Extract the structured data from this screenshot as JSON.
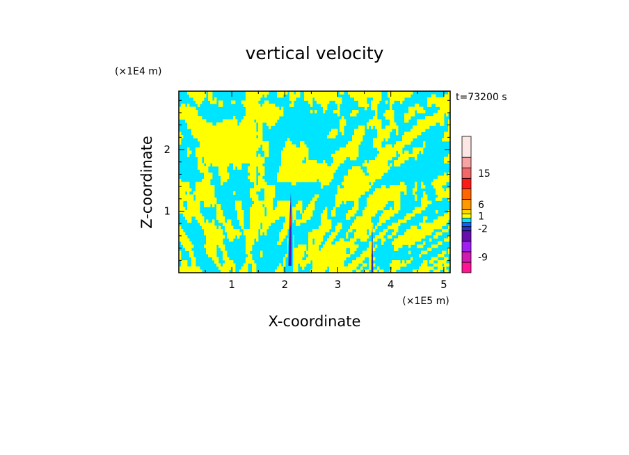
{
  "chart_data": {
    "type": "heatmap",
    "title": "vertical velocity",
    "xlabel": "X-coordinate",
    "ylabel": "Z-coordinate",
    "x_scale_note": "(×1E5 m)",
    "y_scale_note": "(×1E4 m)",
    "time_label": "t=73200 s",
    "xlim": [
      0,
      5.12
    ],
    "ylim": [
      0,
      2.95
    ],
    "x_ticks": [
      1,
      2,
      3,
      4,
      5
    ],
    "y_ticks": [
      1,
      2
    ],
    "x_tick_labels": [
      "1",
      "2",
      "3",
      "4",
      "5"
    ],
    "y_tick_labels": [
      "1",
      "2"
    ],
    "dominant_levels": {
      "positive_color": "#ffff00",
      "negative_color": "#00e5ff"
    },
    "updrafts": [
      {
        "x_center": 2.1,
        "z_top": 1.35,
        "strength": "strong"
      },
      {
        "x_center": 3.65,
        "z_top": 0.8,
        "strength": "weak"
      }
    ],
    "colorbar": {
      "levels": [
        {
          "color": "#ff1493"
        },
        {
          "color": "#d01ab0"
        },
        {
          "color": "#a020f0"
        },
        {
          "color": "#6a0dad"
        },
        {
          "color": "#3030c8"
        },
        {
          "color": "#1060ff"
        },
        {
          "color": "#00e5ff"
        },
        {
          "color": "#ffff00"
        },
        {
          "color": "#ffd700"
        },
        {
          "color": "#ff9900"
        },
        {
          "color": "#ff6600"
        },
        {
          "color": "#ff1a1a"
        },
        {
          "color": "#f26868"
        },
        {
          "color": "#f5a3a3"
        },
        {
          "color": "#fde6e6"
        }
      ],
      "tick_labels": [
        "-9",
        "-2",
        "1",
        "6",
        "15"
      ],
      "tick_level_index": [
        1,
        4,
        7,
        9,
        12
      ]
    }
  },
  "colors": {
    "frame": "#000000",
    "yellow": "#ffff00",
    "cyan": "#00e5ff"
  }
}
